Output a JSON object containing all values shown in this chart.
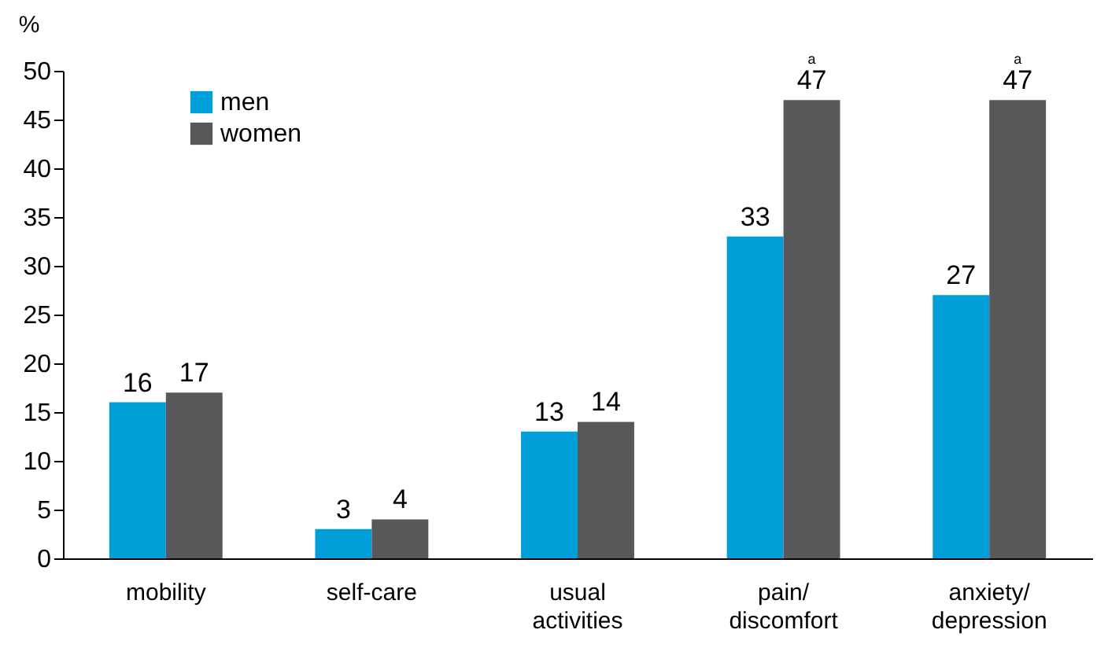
{
  "chart_data": {
    "type": "bar",
    "ylabel": "%",
    "categories": [
      "mobility",
      "self-care",
      "usual activities",
      "pain/ discomfort",
      "anxiety/ depression"
    ],
    "series": [
      {
        "name": "men",
        "color": "#009fda",
        "values": [
          16,
          3,
          13,
          33,
          27
        ]
      },
      {
        "name": "women",
        "color": "#58585a",
        "values": [
          17,
          4,
          14,
          47,
          47
        ]
      }
    ],
    "ylim": [
      0,
      50
    ],
    "yticks": [
      0,
      5,
      10,
      15,
      20,
      25,
      30,
      35,
      40,
      45,
      50
    ],
    "data_labels": true,
    "grid": false,
    "legend": "top left",
    "annotations": [
      {
        "text": "a",
        "x": "pain/ discomfort",
        "y": 47
      },
      {
        "text": "a",
        "x": "anxiety/ depression",
        "y": 47
      }
    ]
  }
}
